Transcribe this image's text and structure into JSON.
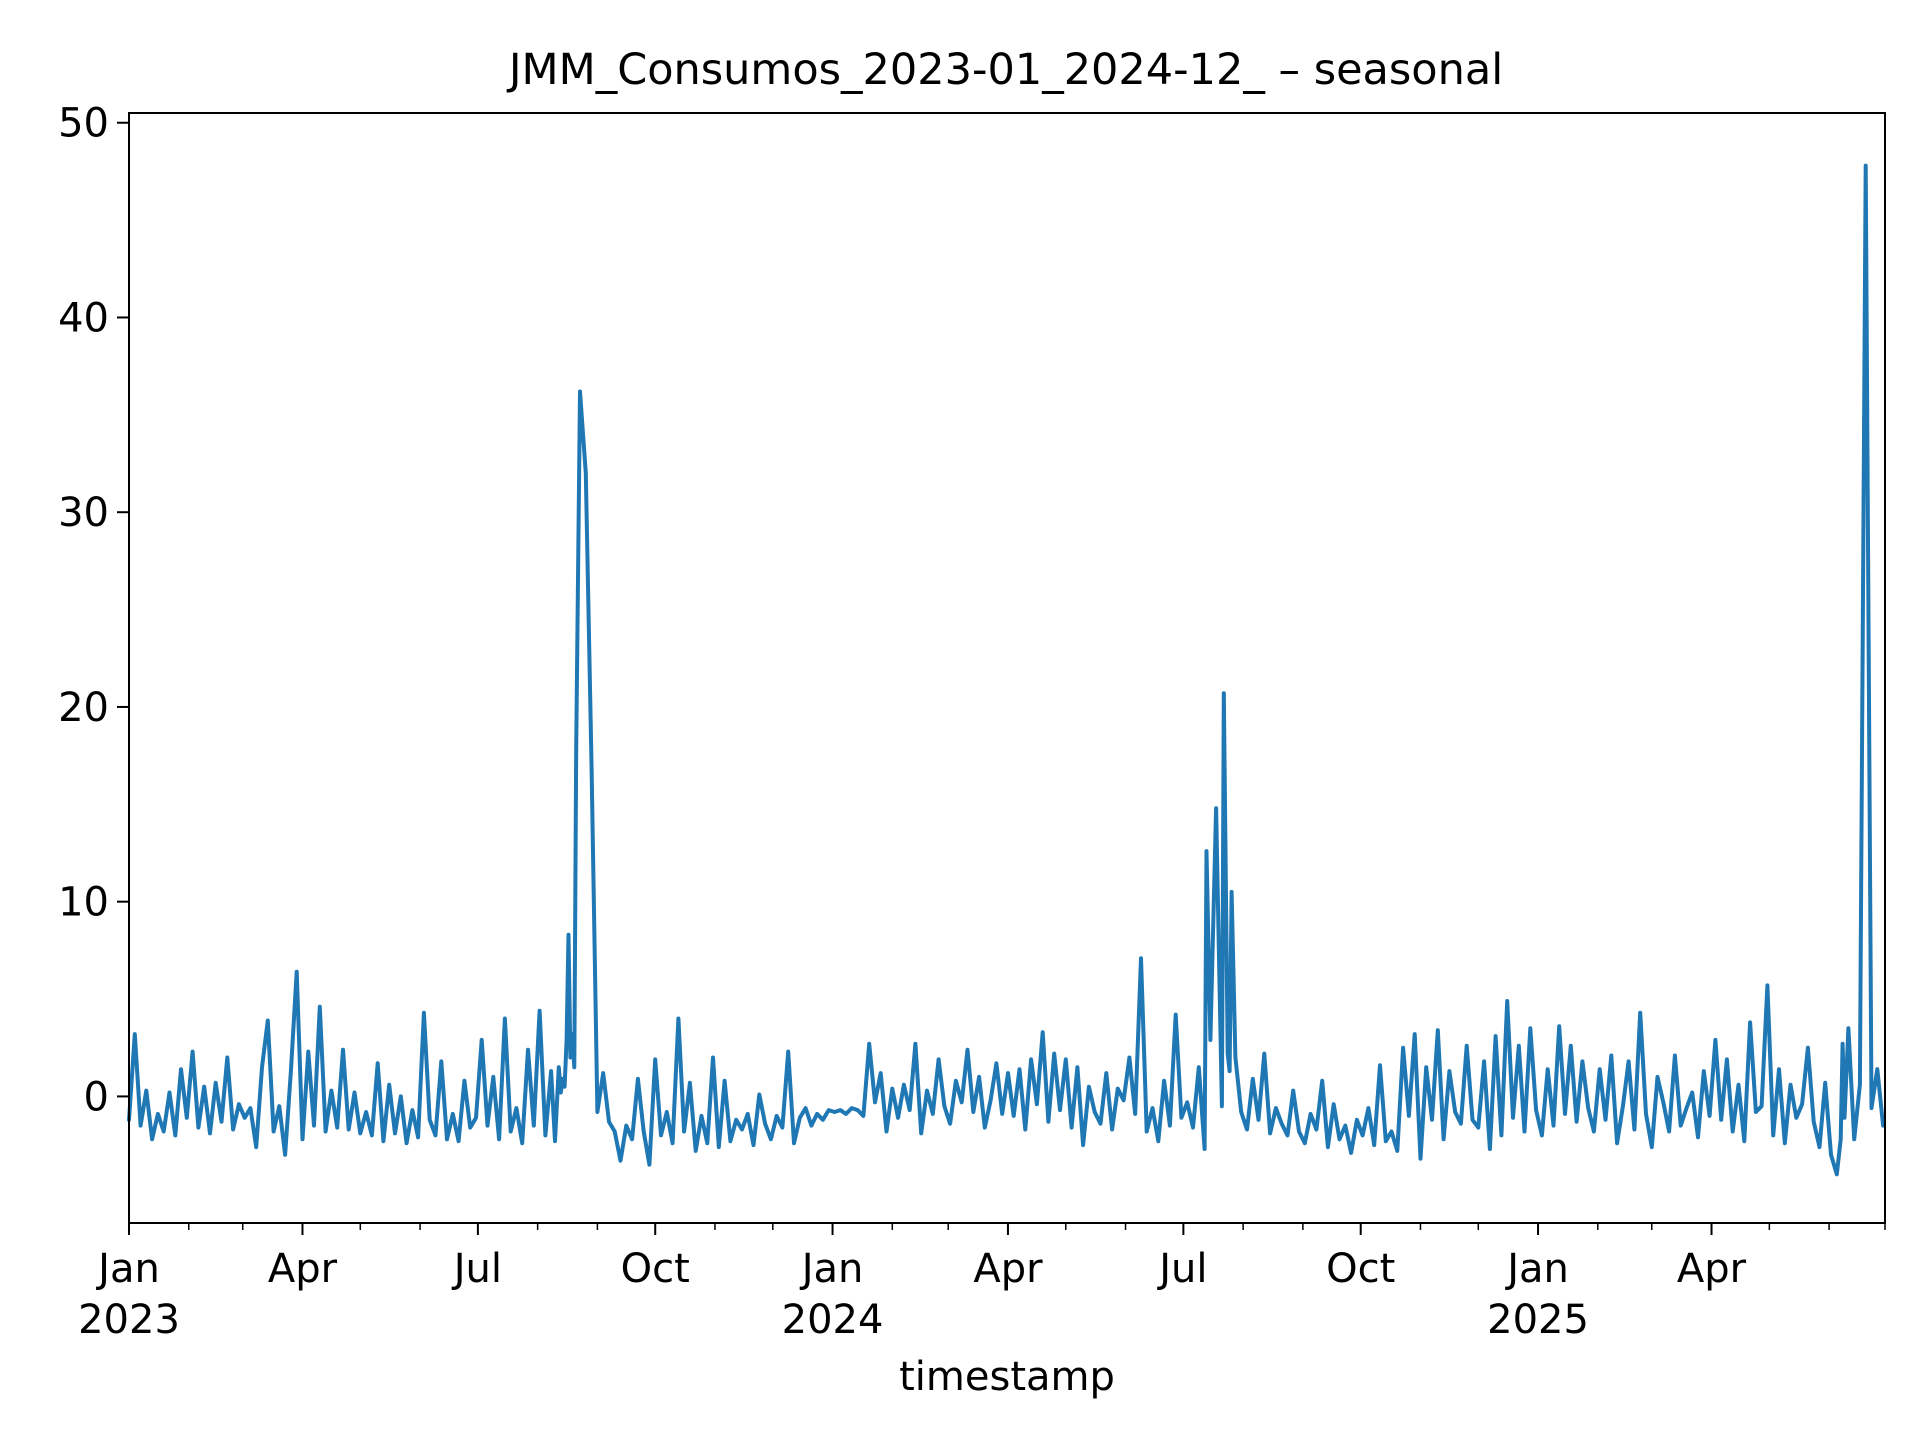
{
  "chart_data": {
    "type": "line",
    "title": "JMM_Consumos_2023-01_2024-12_ – seasonal",
    "xlabel": "timestamp",
    "ylabel": "",
    "xlim": [
      "2023-01-01",
      "2025-06-30"
    ],
    "ylim": [
      -6.5,
      50.5
    ],
    "grid": false,
    "legend": "none",
    "line_color": "#1f77b4",
    "x_ticks": [
      {
        "date": "2023-01-01",
        "label": "Jan",
        "sublabel": "2023"
      },
      {
        "date": "2023-04-01",
        "label": "Apr",
        "sublabel": ""
      },
      {
        "date": "2023-07-01",
        "label": "Jul",
        "sublabel": ""
      },
      {
        "date": "2023-10-01",
        "label": "Oct",
        "sublabel": ""
      },
      {
        "date": "2024-01-01",
        "label": "Jan",
        "sublabel": "2024"
      },
      {
        "date": "2024-04-01",
        "label": "Apr",
        "sublabel": ""
      },
      {
        "date": "2024-07-01",
        "label": "Jul",
        "sublabel": ""
      },
      {
        "date": "2024-10-01",
        "label": "Oct",
        "sublabel": ""
      },
      {
        "date": "2025-01-01",
        "label": "Jan",
        "sublabel": "2025"
      },
      {
        "date": "2025-04-01",
        "label": "Apr",
        "sublabel": ""
      }
    ],
    "y_ticks": [
      {
        "value": 0,
        "label": "0"
      },
      {
        "value": 10,
        "label": "10"
      },
      {
        "value": 20,
        "label": "20"
      },
      {
        "value": 30,
        "label": "30"
      },
      {
        "value": 40,
        "label": "40"
      },
      {
        "value": 50,
        "label": "50"
      }
    ],
    "series": [
      {
        "x": [
          "2023-01-01",
          "2023-01-04",
          "2023-01-07",
          "2023-01-10",
          "2023-01-13",
          "2023-01-16",
          "2023-01-19",
          "2023-01-22",
          "2023-01-25",
          "2023-01-28",
          "2023-01-31",
          "2023-02-03",
          "2023-02-06",
          "2023-02-09",
          "2023-02-12",
          "2023-02-15",
          "2023-02-18",
          "2023-02-21",
          "2023-02-24",
          "2023-02-27",
          "2023-03-02",
          "2023-03-05",
          "2023-03-08",
          "2023-03-11",
          "2023-03-14",
          "2023-03-17",
          "2023-03-20",
          "2023-03-23",
          "2023-03-26",
          "2023-03-29",
          "2023-04-01",
          "2023-04-04",
          "2023-04-07",
          "2023-04-10",
          "2023-04-13",
          "2023-04-16",
          "2023-04-19",
          "2023-04-22",
          "2023-04-25",
          "2023-04-28",
          "2023-05-01",
          "2023-05-04",
          "2023-05-07",
          "2023-05-10",
          "2023-05-13",
          "2023-05-16",
          "2023-05-19",
          "2023-05-22",
          "2023-05-25",
          "2023-05-28",
          "2023-05-31",
          "2023-06-03",
          "2023-06-06",
          "2023-06-09",
          "2023-06-12",
          "2023-06-15",
          "2023-06-18",
          "2023-06-21",
          "2023-06-24",
          "2023-06-27",
          "2023-06-30",
          "2023-07-03",
          "2023-07-06",
          "2023-07-09",
          "2023-07-12",
          "2023-07-15",
          "2023-07-18",
          "2023-07-21",
          "2023-07-24",
          "2023-07-27",
          "2023-07-30",
          "2023-08-02",
          "2023-08-05",
          "2023-08-08",
          "2023-08-10",
          "2023-08-12",
          "2023-08-13",
          "2023-08-14",
          "2023-08-15",
          "2023-08-16",
          "2023-08-17",
          "2023-08-18",
          "2023-08-19",
          "2023-08-20",
          "2023-08-21",
          "2023-08-23",
          "2023-08-26",
          "2023-08-29",
          "2023-09-01",
          "2023-09-04",
          "2023-09-07",
          "2023-09-10",
          "2023-09-13",
          "2023-09-16",
          "2023-09-19",
          "2023-09-22",
          "2023-09-25",
          "2023-09-28",
          "2023-10-01",
          "2023-10-04",
          "2023-10-07",
          "2023-10-10",
          "2023-10-13",
          "2023-10-16",
          "2023-10-19",
          "2023-10-22",
          "2023-10-25",
          "2023-10-28",
          "2023-10-31",
          "2023-11-03",
          "2023-11-06",
          "2023-11-09",
          "2023-11-12",
          "2023-11-15",
          "2023-11-18",
          "2023-11-21",
          "2023-11-24",
          "2023-11-27",
          "2023-11-30",
          "2023-12-03",
          "2023-12-06",
          "2023-12-09",
          "2023-12-12",
          "2023-12-15",
          "2023-12-18",
          "2023-12-21",
          "2023-12-24",
          "2023-12-27",
          "2023-12-30",
          "2024-01-02",
          "2024-01-05",
          "2024-01-08",
          "2024-01-11",
          "2024-01-14",
          "2024-01-17",
          "2024-01-20",
          "2024-01-23",
          "2024-01-26",
          "2024-01-29",
          "2024-02-01",
          "2024-02-04",
          "2024-02-07",
          "2024-02-10",
          "2024-02-13",
          "2024-02-16",
          "2024-02-19",
          "2024-02-22",
          "2024-02-25",
          "2024-02-28",
          "2024-03-02",
          "2024-03-05",
          "2024-03-08",
          "2024-03-11",
          "2024-03-14",
          "2024-03-17",
          "2024-03-20",
          "2024-03-23",
          "2024-03-26",
          "2024-03-29",
          "2024-04-01",
          "2024-04-04",
          "2024-04-07",
          "2024-04-10",
          "2024-04-13",
          "2024-04-16",
          "2024-04-19",
          "2024-04-22",
          "2024-04-25",
          "2024-04-28",
          "2024-05-01",
          "2024-05-04",
          "2024-05-07",
          "2024-05-10",
          "2024-05-13",
          "2024-05-16",
          "2024-05-19",
          "2024-05-22",
          "2024-05-25",
          "2024-05-28",
          "2024-05-31",
          "2024-06-03",
          "2024-06-06",
          "2024-06-09",
          "2024-06-12",
          "2024-06-15",
          "2024-06-18",
          "2024-06-21",
          "2024-06-24",
          "2024-06-27",
          "2024-06-30",
          "2024-07-03",
          "2024-07-06",
          "2024-07-09",
          "2024-07-12",
          "2024-07-13",
          "2024-07-15",
          "2024-07-18",
          "2024-07-21",
          "2024-07-22",
          "2024-07-24",
          "2024-07-25",
          "2024-07-26",
          "2024-07-28",
          "2024-07-31",
          "2024-08-03",
          "2024-08-06",
          "2024-08-09",
          "2024-08-12",
          "2024-08-15",
          "2024-08-18",
          "2024-08-21",
          "2024-08-24",
          "2024-08-27",
          "2024-08-30",
          "2024-09-02",
          "2024-09-05",
          "2024-09-08",
          "2024-09-11",
          "2024-09-14",
          "2024-09-17",
          "2024-09-20",
          "2024-09-23",
          "2024-09-26",
          "2024-09-29",
          "2024-10-02",
          "2024-10-05",
          "2024-10-08",
          "2024-10-11",
          "2024-10-14",
          "2024-10-17",
          "2024-10-20",
          "2024-10-23",
          "2024-10-26",
          "2024-10-29",
          "2024-11-01",
          "2024-11-04",
          "2024-11-07",
          "2024-11-10",
          "2024-11-13",
          "2024-11-16",
          "2024-11-19",
          "2024-11-22",
          "2024-11-25",
          "2024-11-28",
          "2024-12-01",
          "2024-12-04",
          "2024-12-07",
          "2024-12-10",
          "2024-12-13",
          "2024-12-16",
          "2024-12-19",
          "2024-12-22",
          "2024-12-25",
          "2024-12-28",
          "2024-12-31",
          "2025-01-03",
          "2025-01-06",
          "2025-01-09",
          "2025-01-12",
          "2025-01-15",
          "2025-01-18",
          "2025-01-21",
          "2025-01-24",
          "2025-01-27",
          "2025-01-30",
          "2025-02-02",
          "2025-02-05",
          "2025-02-08",
          "2025-02-11",
          "2025-02-14",
          "2025-02-17",
          "2025-02-20",
          "2025-02-23",
          "2025-02-26",
          "2025-03-01",
          "2025-03-04",
          "2025-03-07",
          "2025-03-10",
          "2025-03-13",
          "2025-03-16",
          "2025-03-19",
          "2025-03-22",
          "2025-03-25",
          "2025-03-28",
          "2025-03-31",
          "2025-04-03",
          "2025-04-06",
          "2025-04-09",
          "2025-04-12",
          "2025-04-15",
          "2025-04-18",
          "2025-04-21",
          "2025-04-24",
          "2025-04-27",
          "2025-04-30",
          "2025-05-03",
          "2025-05-06",
          "2025-05-09",
          "2025-05-12",
          "2025-05-15",
          "2025-05-18",
          "2025-05-21",
          "2025-05-24",
          "2025-05-27",
          "2025-05-30",
          "2025-06-02",
          "2025-06-05",
          "2025-06-07",
          "2025-06-08",
          "2025-06-09",
          "2025-06-11",
          "2025-06-14",
          "2025-06-17",
          "2025-06-20",
          "2025-06-23",
          "2025-06-26",
          "2025-06-29"
        ],
        "y": [
          -1.2,
          3.2,
          -1.5,
          0.3,
          -2.2,
          -0.9,
          -1.8,
          0.2,
          -2.0,
          1.4,
          -1.1,
          2.3,
          -1.6,
          0.5,
          -1.9,
          0.7,
          -1.3,
          2.0,
          -1.7,
          -0.4,
          -1.1,
          -0.6,
          -2.6,
          1.5,
          3.9,
          -1.8,
          -0.5,
          -3.0,
          1.3,
          6.4,
          -2.2,
          2.3,
          -1.5,
          4.6,
          -1.8,
          0.3,
          -1.6,
          2.4,
          -1.7,
          0.2,
          -1.9,
          -0.8,
          -2.0,
          1.7,
          -2.3,
          0.6,
          -1.9,
          0.0,
          -2.4,
          -0.7,
          -2.1,
          4.3,
          -1.2,
          -2.0,
          1.8,
          -2.2,
          -0.9,
          -2.3,
          0.8,
          -1.6,
          -1.1,
          2.9,
          -1.5,
          1.0,
          -2.2,
          4.0,
          -1.8,
          -0.6,
          -2.4,
          2.4,
          -1.5,
          4.4,
          -2.0,
          1.3,
          -2.3,
          1.5,
          0.2,
          0.9,
          0.5,
          2.9,
          8.3,
          2.0,
          3.2,
          1.5,
          17.9,
          36.2,
          32.0,
          16.8,
          -0.8,
          1.2,
          -1.3,
          -1.8,
          -3.3,
          -1.5,
          -2.2,
          0.9,
          -1.8,
          -3.5,
          1.9,
          -2.0,
          -0.8,
          -2.4,
          4.0,
          -1.8,
          0.7,
          -2.8,
          -1.0,
          -2.4,
          2.0,
          -2.6,
          0.8,
          -2.3,
          -1.2,
          -1.7,
          -0.9,
          -2.5,
          0.1,
          -1.4,
          -2.2,
          -1.0,
          -1.6,
          2.3,
          -2.4,
          -1.1,
          -0.6,
          -1.5,
          -0.9,
          -1.2,
          -0.7,
          -0.8,
          -0.7,
          -0.9,
          -0.6,
          -0.7,
          -1.0,
          2.7,
          -0.3,
          1.2,
          -1.8,
          0.4,
          -1.1,
          0.6,
          -0.7,
          2.7,
          -1.9,
          0.3,
          -0.9,
          1.9,
          -0.5,
          -1.4,
          0.8,
          -0.3,
          2.4,
          -0.8,
          1.0,
          -1.6,
          -0.2,
          1.7,
          -0.9,
          1.2,
          -1.0,
          1.4,
          -1.7,
          1.9,
          -0.4,
          3.3,
          -1.3,
          2.2,
          -0.7,
          1.9,
          -1.6,
          1.5,
          -2.5,
          0.5,
          -0.8,
          -1.4,
          1.2,
          -1.7,
          0.4,
          -0.2,
          2.0,
          -0.9,
          7.1,
          -1.8,
          -0.6,
          -2.3,
          0.8,
          -1.5,
          4.2,
          -1.1,
          -0.3,
          -1.6,
          1.5,
          -2.7,
          12.6,
          2.9,
          14.8,
          -0.5,
          20.7,
          2.2,
          1.3,
          10.5,
          2.0,
          -0.8,
          -1.7,
          0.9,
          -1.2,
          2.2,
          -1.9,
          -0.6,
          -1.4,
          -2.0,
          0.3,
          -1.8,
          -2.4,
          -0.9,
          -1.7,
          0.8,
          -2.6,
          -0.4,
          -2.2,
          -1.5,
          -2.9,
          -1.2,
          -2.0,
          -0.6,
          -2.5,
          1.6,
          -2.3,
          -1.8,
          -2.8,
          2.5,
          -1.0,
          3.2,
          -3.2,
          1.5,
          -1.2,
          3.4,
          -2.2,
          1.3,
          -0.8,
          -1.4,
          2.6,
          -1.2,
          -1.6,
          1.8,
          -2.7,
          3.1,
          -2.0,
          4.9,
          -1.1,
          2.6,
          -1.8,
          3.5,
          -0.7,
          -2.0,
          1.4,
          -1.5,
          3.6,
          -0.9,
          2.6,
          -1.3,
          1.8,
          -0.6,
          -1.8,
          1.4,
          -1.2,
          2.1,
          -2.4,
          -0.5,
          1.8,
          -1.7,
          4.3,
          -0.9,
          -2.6,
          1.0,
          -0.3,
          -1.8,
          2.1,
          -1.5,
          -0.6,
          0.2,
          -2.1,
          1.3,
          -1.0,
          2.9,
          -1.2,
          1.9,
          -1.8,
          0.6,
          -2.3,
          3.8,
          -0.8,
          -0.5,
          5.7,
          -2.0,
          1.4,
          -2.4,
          0.6,
          -1.1,
          -0.4,
          2.5,
          -1.3,
          -2.6,
          0.7,
          -3.0,
          -4.0,
          -2.2,
          2.7,
          -1.1,
          3.5,
          -2.2,
          0.6,
          47.8,
          -0.6,
          1.4,
          -1.5
        ]
      }
    ]
  }
}
